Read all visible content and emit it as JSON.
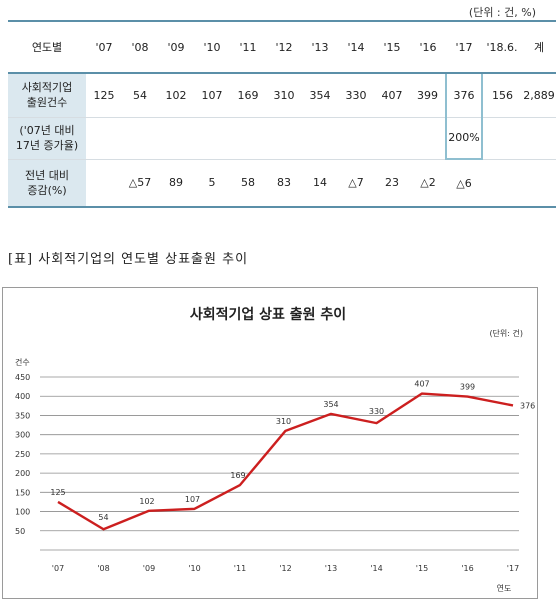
{
  "unit_note": "(단위 : 건, %)",
  "table": {
    "corner": "연도별",
    "columns": [
      "'07",
      "'08",
      "'09",
      "'10",
      "'11",
      "'12",
      "'13",
      "'14",
      "'15",
      "'16",
      "'17",
      "'18.6.",
      "계"
    ],
    "rows": [
      {
        "header": [
          "사회적기업",
          "출원건수"
        ],
        "cells": [
          "125",
          "54",
          "102",
          "107",
          "169",
          "310",
          "354",
          "330",
          "407",
          "399",
          "376",
          "156",
          "2,889"
        ]
      },
      {
        "header": [
          "('07년 대비",
          "17년 증가율)"
        ],
        "cells": [
          "",
          "",
          "",
          "",
          "",
          "",
          "",
          "",
          "",
          "",
          "200%",
          "",
          ""
        ]
      },
      {
        "header": [
          "전년 대비",
          "증감(%)"
        ],
        "cells": [
          "",
          "△57",
          "89",
          "5",
          "58",
          "83",
          "14",
          "△7",
          "23",
          "△2",
          "△6",
          "",
          ""
        ]
      }
    ]
  },
  "caption": "[표] 사회적기업의 연도별 상표출원 추이",
  "chart_data": {
    "type": "line",
    "title": "사회적기업 상표 출원 추이",
    "unit_label": "(단위: 건)",
    "ylabel": "건수",
    "xlabel": "연도",
    "categories": [
      "'07",
      "'08",
      "'09",
      "'10",
      "'11",
      "'12",
      "'13",
      "'14",
      "'15",
      "'16",
      "'17"
    ],
    "values": [
      125,
      54,
      102,
      107,
      169,
      310,
      354,
      330,
      407,
      399,
      376
    ],
    "yticks": [
      450,
      400,
      350,
      300,
      250,
      200,
      150,
      100,
      50
    ],
    "ylim": [
      0,
      450
    ],
    "grid": true,
    "line_color": "#cc1f1f"
  }
}
